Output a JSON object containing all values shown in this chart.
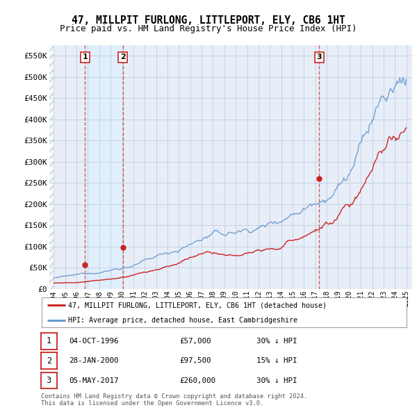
{
  "title": "47, MILLPIT FURLONG, LITTLEPORT, ELY, CB6 1HT",
  "subtitle": "Price paid vs. HM Land Registry's House Price Index (HPI)",
  "ylim": [
    0,
    575000
  ],
  "yticks": [
    0,
    50000,
    100000,
    150000,
    200000,
    250000,
    300000,
    350000,
    400000,
    450000,
    500000,
    550000
  ],
  "ytick_labels": [
    "£0",
    "£50K",
    "£100K",
    "£150K",
    "£200K",
    "£250K",
    "£300K",
    "£350K",
    "£400K",
    "£450K",
    "£500K",
    "£550K"
  ],
  "xlim_start": 1993.6,
  "xlim_end": 2025.5,
  "hpi_color": "#6699cc",
  "price_color": "#cc2222",
  "vline_color": "#cc4444",
  "sale_dates": [
    1996.75,
    2000.07,
    2017.34
  ],
  "sale_prices": [
    57000,
    97500,
    260000
  ],
  "sale_labels": [
    "1",
    "2",
    "3"
  ],
  "legend_label_price": "47, MILLPIT FURLONG, LITTLEPORT, ELY, CB6 1HT (detached house)",
  "legend_label_hpi": "HPI: Average price, detached house, East Cambridgeshire",
  "table_data": [
    [
      "1",
      "04-OCT-1996",
      "£57,000",
      "30% ↓ HPI"
    ],
    [
      "2",
      "28-JAN-2000",
      "£97,500",
      "15% ↓ HPI"
    ],
    [
      "3",
      "05-MAY-2017",
      "£260,000",
      "30% ↓ HPI"
    ]
  ],
  "footer": "Contains HM Land Registry data © Crown copyright and database right 2024.\nThis data is licensed under the Open Government Licence v3.0.",
  "bg_color": "#e8eef8",
  "hatch_bg": "#dde4ee",
  "grid_color": "#b8c8dc",
  "title_fontsize": 10.5,
  "subtitle_fontsize": 9,
  "axis_fontsize": 8
}
